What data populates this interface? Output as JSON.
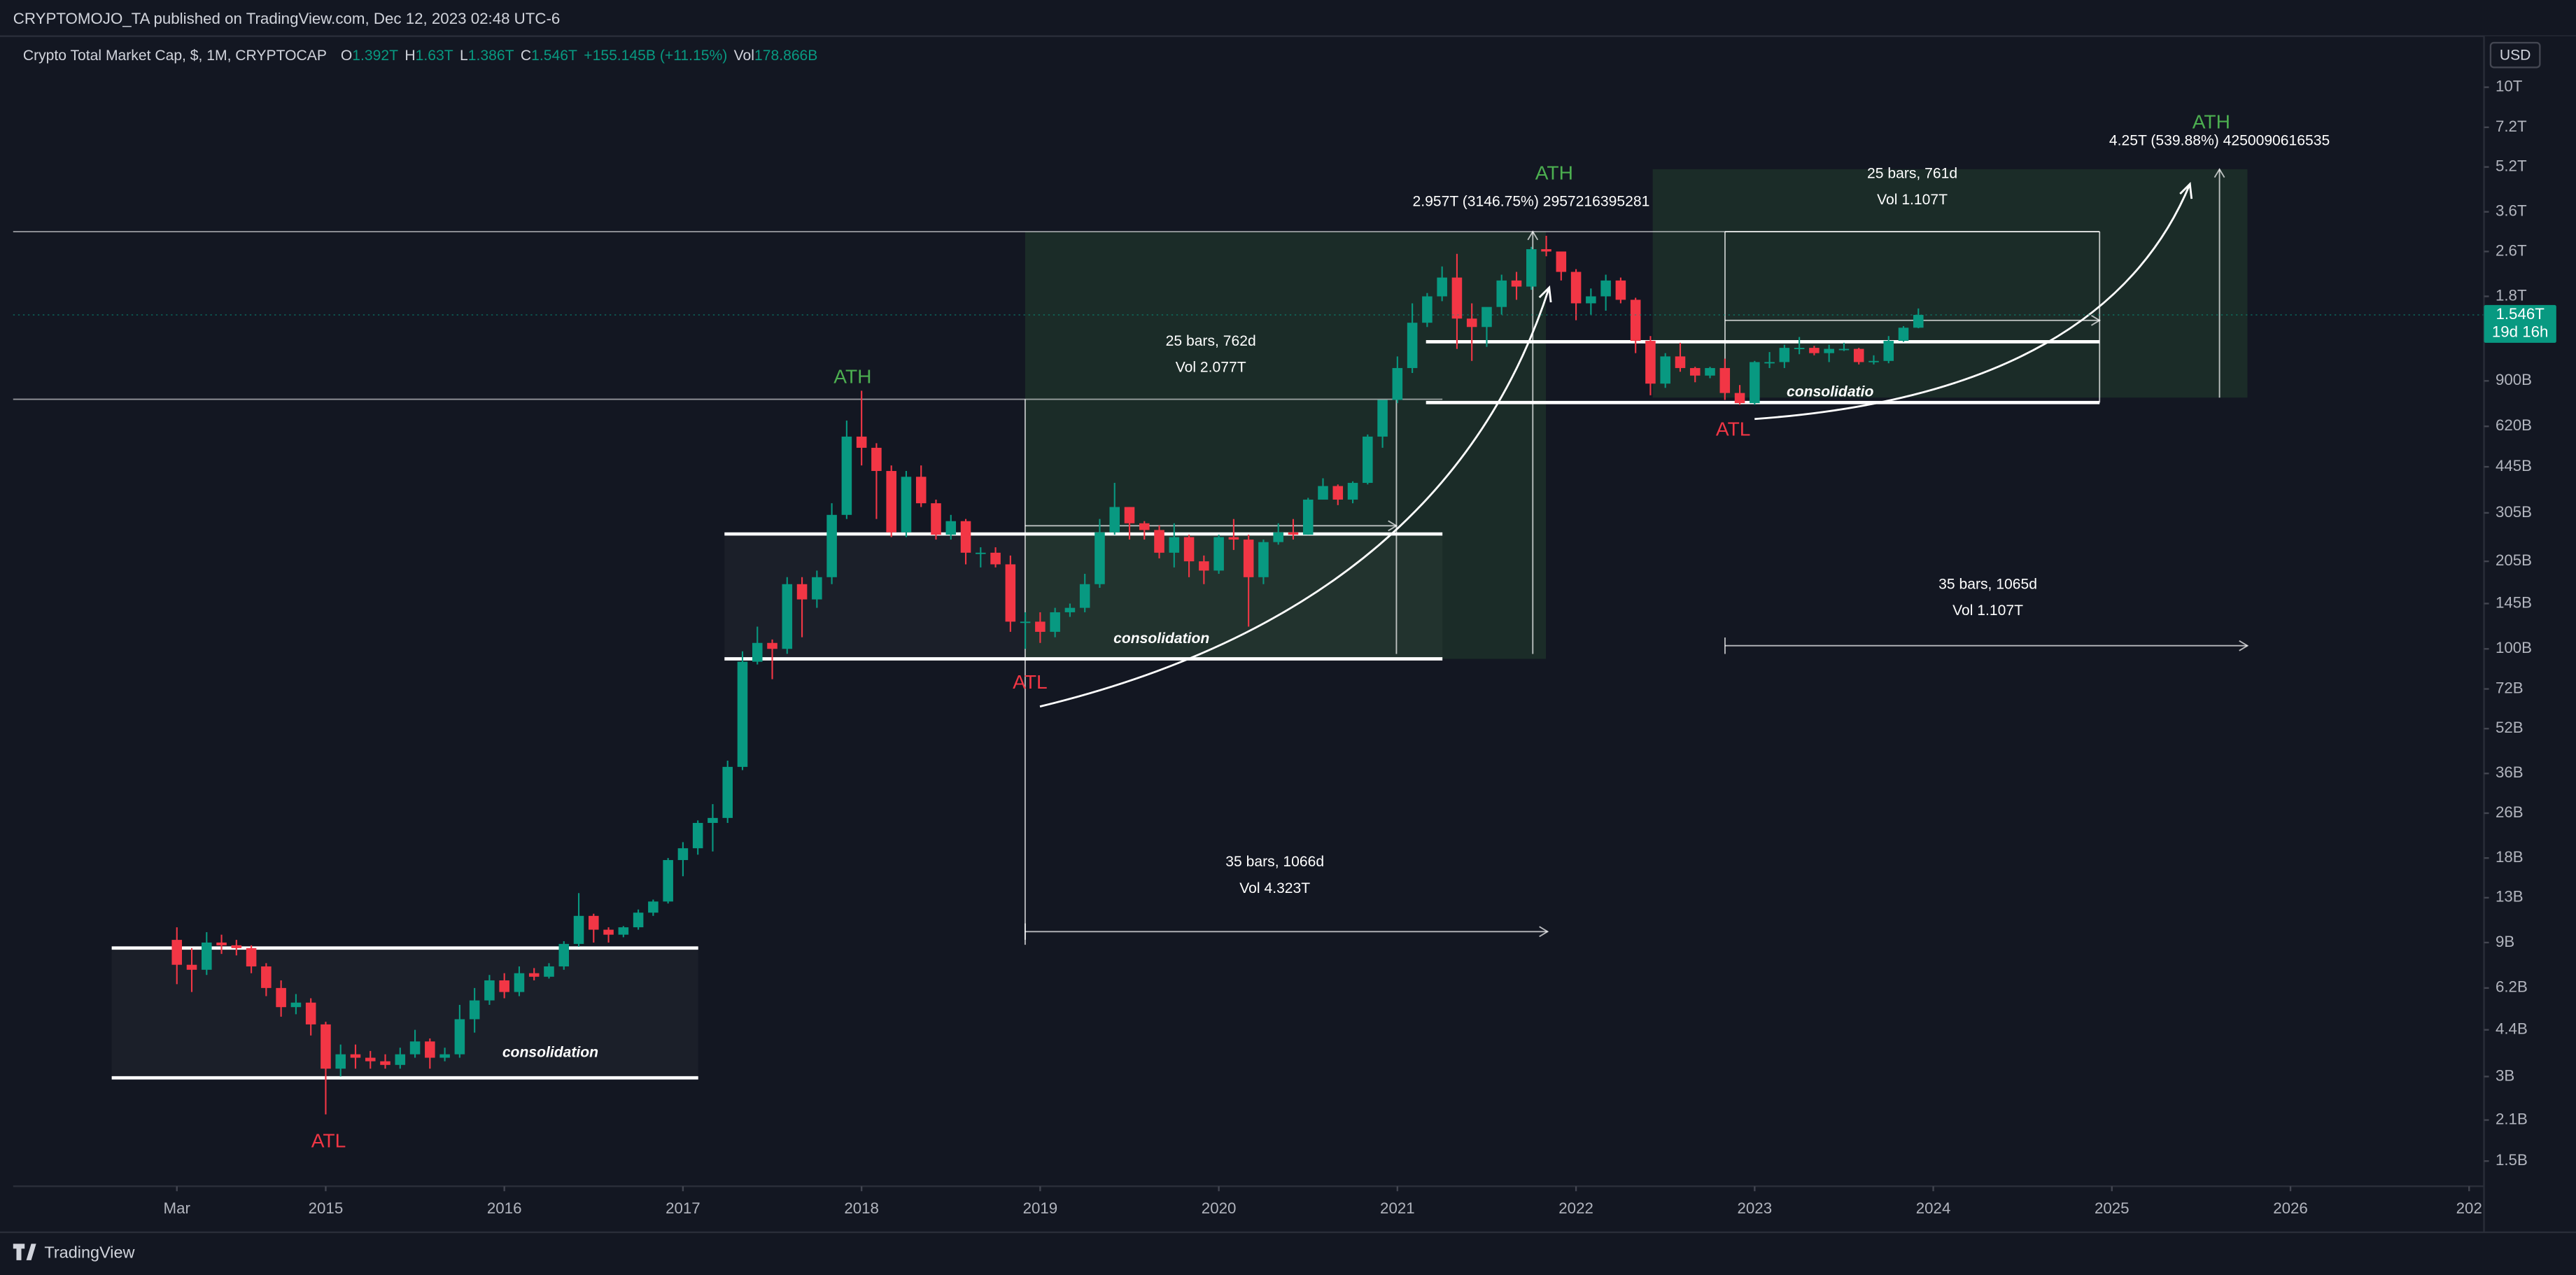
{
  "chart_data": {
    "type": "candlestick",
    "header": "CRYPTOMOJO_TA published on TradingView.com, Dec 12, 2023 02:48 UTC-6",
    "ohlc_legend": {
      "symbol": "Crypto Total Market Cap, $, 1M, CRYPTOCAP",
      "fields": [
        {
          "key": "O",
          "value": "1.392T"
        },
        {
          "key": "H",
          "value": "1.63T"
        },
        {
          "key": "L",
          "value": "1.386T"
        },
        {
          "key": "C",
          "value": "1.546T"
        }
      ],
      "change": "+155.145B (+11.15%)",
      "vol_key": "Vol",
      "vol_value": "178.866B"
    },
    "currency": "USD",
    "price_label": {
      "price": "1.546T",
      "countdown": "19d 16h"
    },
    "footer": "TradingView",
    "annotations": [
      "ATH",
      "ATH",
      "ATH",
      "ATL",
      "ATL",
      "ATL",
      "consolidation",
      "consolidation",
      "consolidatio",
      "25 bars, 762d",
      "Vol 2.077T",
      "35 bars, 1066d",
      "Vol 4.323T",
      "25 bars, 761d",
      "Vol 1.107T",
      "35 bars, 1065d",
      "Vol 1.107T",
      "2.957T (3146.75%) 2957216395281",
      "4.25T (539.88%) 4250090616535"
    ],
    "up_color": "#089981",
    "down_color": "#f23645",
    "log_scale": true,
    "grid": false,
    "xlim": [
      "2013-04",
      "2027-02"
    ],
    "xticks": [
      {
        "value": "2014-03",
        "label": "Mar"
      },
      {
        "value": "2015-01",
        "label": "2015"
      },
      {
        "value": "2016-01",
        "label": "2016"
      },
      {
        "value": "2017-01",
        "label": "2017"
      },
      {
        "value": "2018-01",
        "label": "2018"
      },
      {
        "value": "2019-01",
        "label": "2019"
      },
      {
        "value": "2020-01",
        "label": "2020"
      },
      {
        "value": "2021-01",
        "label": "2021"
      },
      {
        "value": "2022-01",
        "label": "2022"
      },
      {
        "value": "2023-01",
        "label": "2023"
      },
      {
        "value": "2024-01",
        "label": "2024"
      },
      {
        "value": "2025-01",
        "label": "2025"
      },
      {
        "value": "2026-01",
        "label": "2026"
      },
      {
        "value": "2027-01",
        "label": "202"
      }
    ],
    "ylim": [
      1220000000.0,
      15200000000000.0
    ],
    "yticks": [
      {
        "value": 10000000000000.0,
        "label": "10T"
      },
      {
        "value": 7200000000000.0,
        "label": "7.2T"
      },
      {
        "value": 5200000000000.0,
        "label": "5.2T"
      },
      {
        "value": 3600000000000.0,
        "label": "3.6T"
      },
      {
        "value": 2600000000000.0,
        "label": "2.6T"
      },
      {
        "value": 1800000000000.0,
        "label": "1.8T"
      },
      {
        "value": 900000000000.0,
        "label": "900B"
      },
      {
        "value": 620000000000.0,
        "label": "620B"
      },
      {
        "value": 445000000000.0,
        "label": "445B"
      },
      {
        "value": 305000000000.0,
        "label": "305B"
      },
      {
        "value": 205000000000.0,
        "label": "205B"
      },
      {
        "value": 145000000000.0,
        "label": "145B"
      },
      {
        "value": 100000000000.0,
        "label": "100B"
      },
      {
        "value": 72000000000.0,
        "label": "72B"
      },
      {
        "value": 52000000000.0,
        "label": "52B"
      },
      {
        "value": 36000000000.0,
        "label": "36B"
      },
      {
        "value": 26000000000.0,
        "label": "26B"
      },
      {
        "value": 18000000000.0,
        "label": "18B"
      },
      {
        "value": 13000000000.0,
        "label": "13B"
      },
      {
        "value": 9000000000.0,
        "label": "9B"
      },
      {
        "value": 6200000000.0,
        "label": "6.2B"
      },
      {
        "value": 4400000000.0,
        "label": "4.4B"
      },
      {
        "value": 3000000000.0,
        "label": "3B"
      },
      {
        "value": 2100000000.0,
        "label": "2.1B"
      },
      {
        "value": 1500000000.0,
        "label": "1.5B"
      }
    ],
    "candles": {
      "x": [
        "2014-03",
        "2014-04",
        "2014-05",
        "2014-06",
        "2014-07",
        "2014-08",
        "2014-09",
        "2014-10",
        "2014-11",
        "2014-12",
        "2015-01",
        "2015-02",
        "2015-03",
        "2015-04",
        "2015-05",
        "2015-06",
        "2015-07",
        "2015-08",
        "2015-09",
        "2015-10",
        "2015-11",
        "2015-12",
        "2016-01",
        "2016-02",
        "2016-03",
        "2016-04",
        "2016-05",
        "2016-06",
        "2016-07",
        "2016-08",
        "2016-09",
        "2016-10",
        "2016-11",
        "2016-12",
        "2017-01",
        "2017-02",
        "2017-03",
        "2017-04",
        "2017-05",
        "2017-06",
        "2017-07",
        "2017-08",
        "2017-09",
        "2017-10",
        "2017-11",
        "2017-12",
        "2018-01",
        "2018-02",
        "2018-03",
        "2018-04",
        "2018-05",
        "2018-06",
        "2018-07",
        "2018-08",
        "2018-09",
        "2018-10",
        "2018-11",
        "2018-12",
        "2019-01",
        "2019-02",
        "2019-03",
        "2019-04",
        "2019-05",
        "2019-06",
        "2019-07",
        "2019-08",
        "2019-09",
        "2019-10",
        "2019-11",
        "2019-12",
        "2020-01",
        "2020-02",
        "2020-03",
        "2020-04",
        "2020-05",
        "2020-06",
        "2020-07",
        "2020-08",
        "2020-09",
        "2020-10",
        "2020-11",
        "2020-12",
        "2021-01",
        "2021-02",
        "2021-03",
        "2021-04",
        "2021-05",
        "2021-06",
        "2021-07",
        "2021-08",
        "2021-09",
        "2021-10",
        "2021-11",
        "2021-12",
        "2022-01",
        "2022-02",
        "2022-03",
        "2022-04",
        "2022-05",
        "2022-06",
        "2022-07",
        "2022-08",
        "2022-09",
        "2022-10",
        "2022-11",
        "2022-12",
        "2023-01",
        "2023-02",
        "2023-03",
        "2023-04",
        "2023-05",
        "2023-06",
        "2023-07",
        "2023-08",
        "2023-09",
        "2023-10",
        "2023-11",
        "2023-12"
      ],
      "open": [
        9200000000.0,
        7500000000.0,
        7200000000.0,
        9000000000.0,
        8800000000.0,
        8600000000.0,
        7400000000.0,
        6200000000.0,
        5300000000.0,
        5500000000.0,
        4600000000.0,
        3200000000.0,
        3600000000.0,
        3500000000.0,
        3400000000.0,
        3300000000.0,
        3600000000.0,
        4000000000.0,
        3500000000.0,
        3600000000.0,
        4800000000.0,
        5600000000.0,
        6600000000.0,
        6000000000.0,
        7000000000.0,
        6800000000.0,
        7400000000.0,
        8900000000.0,
        11200000000.0,
        10000000000.0,
        9600000000.0,
        10200000000.0,
        11500000000.0,
        12600000000.0,
        17700000000.0,
        19500000000.0,
        24000000000.0,
        25000000000.0,
        38000000000.0,
        90000000000.0,
        105000000000.0,
        100000000000.0,
        170000000000.0,
        150000000000.0,
        180000000000.0,
        300000000000.0,
        570000000000.0,
        520000000000.0,
        430000000000.0,
        260000000000.0,
        410000000000.0,
        330000000000.0,
        255000000000.0,
        285000000000.0,
        220000000000.0,
        220000000000.0,
        200000000000.0,
        125000000000.0,
        125000000000.0,
        115000000000.0,
        135000000000.0,
        140000000000.0,
        170000000000.0,
        260000000000.0,
        320000000000.0,
        280000000000.0,
        265000000000.0,
        220000000000.0,
        250000000000.0,
        205000000000.0,
        190000000000.0,
        250000000000.0,
        245000000000.0,
        180000000000.0,
        240000000000.0,
        260000000000.0,
        255000000000.0,
        340000000000.0,
        380000000000.0,
        340000000000.0,
        390000000000.0,
        570000000000.0,
        770000000000.0,
        1000000000000.0,
        1450000000000.0,
        1800000000000.0,
        2100000000000.0,
        1500000000000.0,
        1400000000000.0,
        1650000000000.0,
        2050000000000.0,
        1950000000000.0,
        2650000000000.0,
        2600000000000.0,
        2200000000000.0,
        1700000000000.0,
        1800000000000.0,
        2050000000000.0,
        1750000000000.0,
        1250000000000.0,
        880000000000.0,
        1100000000000.0,
        1000000000000.0,
        940000000000.0,
        1000000000000.0,
        815000000000.0,
        750000000000.0,
        1050000000000.0,
        1050000000000.0,
        1180000000000.0,
        1180000000000.0,
        1130000000000.0,
        1170000000000.0,
        1170000000000.0,
        1050000000000.0,
        1060000000000.0,
        1250000000000.0,
        1392000000000.0
      ],
      "high": [
        10200000000.0,
        8600000000.0,
        9800000000.0,
        9600000000.0,
        9200000000.0,
        8800000000.0,
        7600000000.0,
        6600000000.0,
        5900000000.0,
        5700000000.0,
        4700000000.0,
        3900000000.0,
        3900000000.0,
        3700000000.0,
        3600000000.0,
        3800000000.0,
        4400000000.0,
        4100000000.0,
        3800000000.0,
        5400000000.0,
        6200000000.0,
        6900000000.0,
        7000000000.0,
        7400000000.0,
        7300000000.0,
        7600000000.0,
        9100000000.0,
        13500000000.0,
        11400000000.0,
        10200000000.0,
        10300000000.0,
        11800000000.0,
        12800000000.0,
        18000000000.0,
        20500000000.0,
        24500000000.0,
        28000000000.0,
        40000000000.0,
        98000000000.0,
        120000000000.0,
        108000000000.0,
        180000000000.0,
        180000000000.0,
        190000000000.0,
        330000000000.0,
        650000000000.0,
        830000000000.0,
        540000000000.0,
        450000000000.0,
        430000000000.0,
        450000000000.0,
        340000000000.0,
        300000000000.0,
        290000000000.0,
        230000000000.0,
        230000000000.0,
        215000000000.0,
        135000000000.0,
        135000000000.0,
        140000000000.0,
        145000000000.0,
        185000000000.0,
        290000000000.0,
        390000000000.0,
        320000000000.0,
        285000000000.0,
        275000000000.0,
        280000000000.0,
        255000000000.0,
        215000000000.0,
        255000000000.0,
        290000000000.0,
        255000000000.0,
        245000000000.0,
        280000000000.0,
        290000000000.0,
        345000000000.0,
        405000000000.0,
        385000000000.0,
        395000000000.0,
        580000000000.0,
        770000000000.0,
        1100000000000.0,
        1700000000000.0,
        1850000000000.0,
        2300000000000.0,
        2550000000000.0,
        1700000000000.0,
        1600000000000.0,
        2150000000000.0,
        2200000000000.0,
        2700000000000.0,
        2957000000000.0,
        2550000000000.0,
        2250000000000.0,
        1920000000000.0,
        2150000000000.0,
        2100000000000.0,
        1780000000000.0,
        1300000000000.0,
        1130000000000.0,
        1230000000000.0,
        1010000000000.0,
        1010000000000.0,
        1080000000000.0,
        870000000000.0,
        1060000000000.0,
        1140000000000.0,
        1210000000000.0,
        1290000000000.0,
        1200000000000.0,
        1210000000000.0,
        1230000000000.0,
        1180000000000.0,
        1110000000000.0,
        1300000000000.0,
        1410000000000.0,
        1630000000000.0
      ],
      "low": [
        6400000000.0,
        6000000000.0,
        6900000000.0,
        8200000000.0,
        8100000000.0,
        7000000000.0,
        5800000000.0,
        4900000000.0,
        5000000000.0,
        4200000000.0,
        2200000000.0,
        3000000000.0,
        3200000000.0,
        3200000000.0,
        3200000000.0,
        3200000000.0,
        3500000000.0,
        3200000000.0,
        3400000000.0,
        3500000000.0,
        4300000000.0,
        5400000000.0,
        5700000000.0,
        5800000000.0,
        6600000000.0,
        6700000000.0,
        7200000000.0,
        8700000000.0,
        9000000000.0,
        9000000000.0,
        9400000000.0,
        10000000000.0,
        11200000000.0,
        12400000000.0,
        15500000000.0,
        18500000000.0,
        19000000000.0,
        24000000000.0,
        37000000000.0,
        88000000000.0,
        78000000000.0,
        96000000000.0,
        110000000000.0,
        140000000000.0,
        170000000000.0,
        290000000000.0,
        450000000000.0,
        290000000000.0,
        250000000000.0,
        250000000000.0,
        320000000000.0,
        245000000000.0,
        245000000000.0,
        200000000000.0,
        195000000000.0,
        195000000000.0,
        115000000000.0,
        100000000000.0,
        105000000000.0,
        110000000000.0,
        130000000000.0,
        135000000000.0,
        165000000000.0,
        255000000000.0,
        245000000000.0,
        245000000000.0,
        210000000000.0,
        195000000000.0,
        180000000000.0,
        170000000000.0,
        185000000000.0,
        225000000000.0,
        120000000000.0,
        170000000000.0,
        235000000000.0,
        245000000000.0,
        255000000000.0,
        340000000000.0,
        325000000000.0,
        330000000000.0,
        385000000000.0,
        520000000000.0,
        750000000000.0,
        960000000000.0,
        1400000000000.0,
        1730000000000.0,
        1170000000000.0,
        1060000000000.0,
        1190000000000.0,
        1550000000000.0,
        1750000000000.0,
        1900000000000.0,
        2500000000000.0,
        2050000000000.0,
        1480000000000.0,
        1550000000000.0,
        1600000000000.0,
        1700000000000.0,
        1130000000000.0,
        800000000000.0,
        850000000000.0,
        970000000000.0,
        890000000000.0,
        920000000000.0,
        770000000000.0,
        740000000000.0,
        740000000000.0,
        1000000000000.0,
        1000000000000.0,
        1120000000000.0,
        1110000000000.0,
        1050000000000.0,
        1150000000000.0,
        1030000000000.0,
        1030000000000.0,
        1040000000000.0,
        1240000000000.0,
        1386000000000.0
      ],
      "close": [
        7500000000.0,
        7200000000.0,
        9000000000.0,
        8800000000.0,
        8600000000.0,
        7400000000.0,
        6200000000.0,
        5300000000.0,
        5500000000.0,
        4600000000.0,
        3200000000.0,
        3600000000.0,
        3500000000.0,
        3400000000.0,
        3300000000.0,
        3600000000.0,
        4000000000.0,
        3500000000.0,
        3600000000.0,
        4800000000.0,
        5600000000.0,
        6600000000.0,
        6000000000.0,
        7000000000.0,
        6800000000.0,
        7400000000.0,
        8900000000.0,
        11200000000.0,
        10000000000.0,
        9600000000.0,
        10200000000.0,
        11500000000.0,
        12600000000.0,
        17700000000.0,
        19500000000.0,
        24000000000.0,
        25000000000.0,
        38000000000.0,
        90000000000.0,
        105000000000.0,
        100000000000.0,
        170000000000.0,
        150000000000.0,
        180000000000.0,
        300000000000.0,
        570000000000.0,
        520000000000.0,
        430000000000.0,
        260000000000.0,
        410000000000.0,
        330000000000.0,
        255000000000.0,
        285000000000.0,
        220000000000.0,
        220000000000.0,
        200000000000.0,
        125000000000.0,
        125000000000.0,
        115000000000.0,
        135000000000.0,
        140000000000.0,
        170000000000.0,
        260000000000.0,
        320000000000.0,
        280000000000.0,
        265000000000.0,
        220000000000.0,
        250000000000.0,
        205000000000.0,
        190000000000.0,
        250000000000.0,
        245000000000.0,
        180000000000.0,
        240000000000.0,
        260000000000.0,
        255000000000.0,
        340000000000.0,
        380000000000.0,
        340000000000.0,
        390000000000.0,
        570000000000.0,
        770000000000.0,
        1000000000000.0,
        1450000000000.0,
        1800000000000.0,
        2100000000000.0,
        1500000000000.0,
        1400000000000.0,
        1650000000000.0,
        2050000000000.0,
        1950000000000.0,
        2650000000000.0,
        2600000000000.0,
        2200000000000.0,
        1700000000000.0,
        1800000000000.0,
        2050000000000.0,
        1750000000000.0,
        1250000000000.0,
        880000000000.0,
        1100000000000.0,
        1000000000000.0,
        940000000000.0,
        1000000000000.0,
        815000000000.0,
        750000000000.0,
        1050000000000.0,
        1050000000000.0,
        1180000000000.0,
        1180000000000.0,
        1130000000000.0,
        1170000000000.0,
        1170000000000.0,
        1050000000000.0,
        1060000000000.0,
        1250000000000.0,
        1392000000000.0,
        1546000000000.0
      ]
    }
  }
}
